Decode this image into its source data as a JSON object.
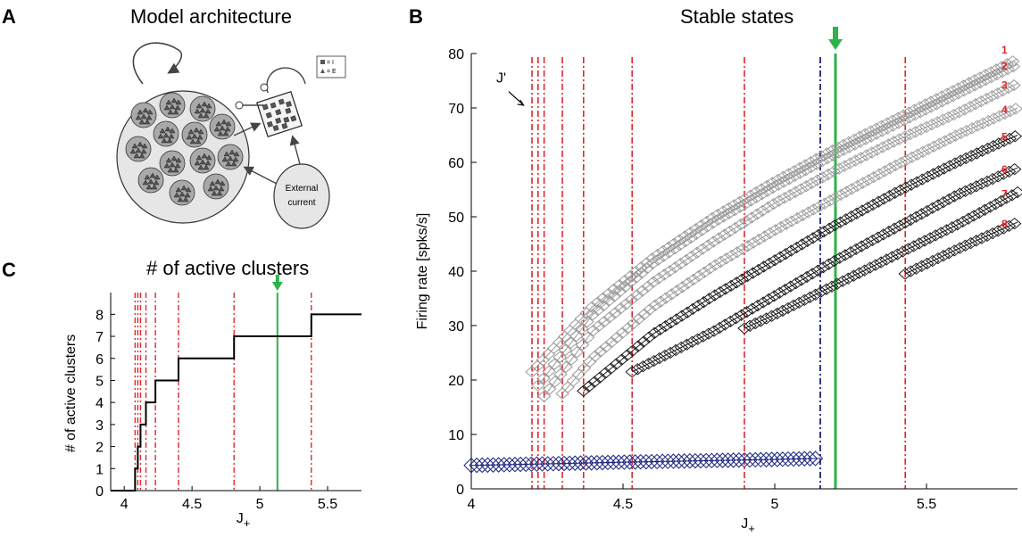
{
  "figure": {
    "panels": {
      "a": {
        "letter": "A",
        "title": "Model architecture"
      },
      "b": {
        "letter": "B",
        "title": "Stable states"
      },
      "c": {
        "letter": "C",
        "title": "# of active clusters"
      }
    },
    "diagram": {
      "legend_inhibitory": "= I",
      "legend_excitatory": "= E",
      "external_label_line1": "External",
      "external_label_line2": "current"
    }
  },
  "colors": {
    "gray_series": "#9a9a9a",
    "dark_series": "#1a1a1a",
    "baseline_series": "#1a237e",
    "threshold_line": "#e52528",
    "chosen_line": "#2db34a",
    "navy_line": "#1a237e",
    "label_red": "#e52528"
  },
  "chart_data": [
    {
      "type": "line",
      "panel": "B",
      "title": "Stable states",
      "xlabel": "J+",
      "ylabel": "Firing rate [spks/s]",
      "xlim": [
        4.0,
        5.8
      ],
      "ylim": [
        0,
        80
      ],
      "xticks": [
        "4",
        "4.5",
        "5",
        "5.5"
      ],
      "yticks": [
        "0",
        "10",
        "20",
        "30",
        "40",
        "50",
        "60",
        "70",
        "80"
      ],
      "annotation": "J'",
      "threshold_lines": [
        4.2,
        4.22,
        4.24,
        4.3,
        4.37,
        4.53,
        4.9,
        5.43
      ],
      "navy_line": 5.15,
      "green_line": 5.2,
      "series": [
        {
          "name": "1",
          "x": [
            4.2,
            4.4,
            4.6,
            4.8,
            5.0,
            5.2,
            5.4,
            5.6,
            5.8
          ],
          "y": [
            21.5,
            33.5,
            42.5,
            50.0,
            56.5,
            62.5,
            68.0,
            73.5,
            79.0
          ]
        },
        {
          "name": "2",
          "x": [
            4.22,
            4.4,
            4.6,
            4.8,
            5.0,
            5.2,
            5.4,
            5.6,
            5.8
          ],
          "y": [
            19.0,
            32.0,
            41.5,
            49.0,
            55.5,
            61.5,
            67.0,
            72.5,
            78.0
          ]
        },
        {
          "name": "3",
          "x": [
            4.24,
            4.4,
            4.6,
            4.8,
            5.0,
            5.2,
            5.4,
            5.6,
            5.8
          ],
          "y": [
            17.0,
            29.0,
            38.0,
            45.5,
            52.5,
            58.5,
            64.0,
            69.0,
            74.5
          ]
        },
        {
          "name": "4",
          "x": [
            4.3,
            4.4,
            4.6,
            4.8,
            5.0,
            5.2,
            5.4,
            5.6,
            5.8
          ],
          "y": [
            17.5,
            24.0,
            33.5,
            41.0,
            47.5,
            53.5,
            59.5,
            65.0,
            70.0
          ]
        },
        {
          "name": "5",
          "x": [
            4.37,
            4.6,
            4.8,
            5.0,
            5.2,
            5.4,
            5.6,
            5.8
          ],
          "y": [
            18.0,
            28.5,
            35.5,
            42.0,
            48.5,
            54.5,
            60.0,
            65.0
          ]
        },
        {
          "name": "6",
          "x": [
            4.53,
            4.8,
            5.0,
            5.2,
            5.4,
            5.6,
            5.8
          ],
          "y": [
            21.5,
            29.0,
            35.5,
            42.0,
            48.0,
            54.0,
            59.0
          ]
        },
        {
          "name": "7",
          "x": [
            4.9,
            5.0,
            5.2,
            5.4,
            5.6,
            5.8
          ],
          "y": [
            29.5,
            32.0,
            37.5,
            43.0,
            48.5,
            54.5
          ]
        },
        {
          "name": "8",
          "x": [
            5.43,
            5.6,
            5.8
          ],
          "y": [
            39.5,
            44.0,
            49.0
          ]
        },
        {
          "name": "",
          "x": [
            4.0,
            4.5,
            5.0,
            5.15
          ],
          "y": [
            4.3,
            4.9,
            5.4,
            5.6
          ]
        }
      ]
    },
    {
      "type": "line",
      "panel": "C",
      "title": "# of active clusters",
      "xlabel": "J+",
      "ylabel": "# of active clusters",
      "xlim": [
        3.9,
        5.75
      ],
      "ylim": [
        0,
        8.5
      ],
      "xticks": [
        "4",
        "4.5",
        "5",
        "5.5"
      ],
      "yticks": [
        "0",
        "1",
        "2",
        "3",
        "4",
        "5",
        "6",
        "7",
        "8"
      ],
      "threshold_lines": [
        4.08,
        4.1,
        4.12,
        4.16,
        4.23,
        4.4,
        4.81,
        5.38
      ],
      "green_line": 5.13,
      "step_x": [
        3.9,
        4.08,
        4.1,
        4.12,
        4.16,
        4.23,
        4.4,
        4.81,
        5.38,
        5.75
      ],
      "step_y": [
        0,
        1,
        2,
        3,
        4,
        5,
        6,
        7,
        8,
        8
      ]
    }
  ]
}
